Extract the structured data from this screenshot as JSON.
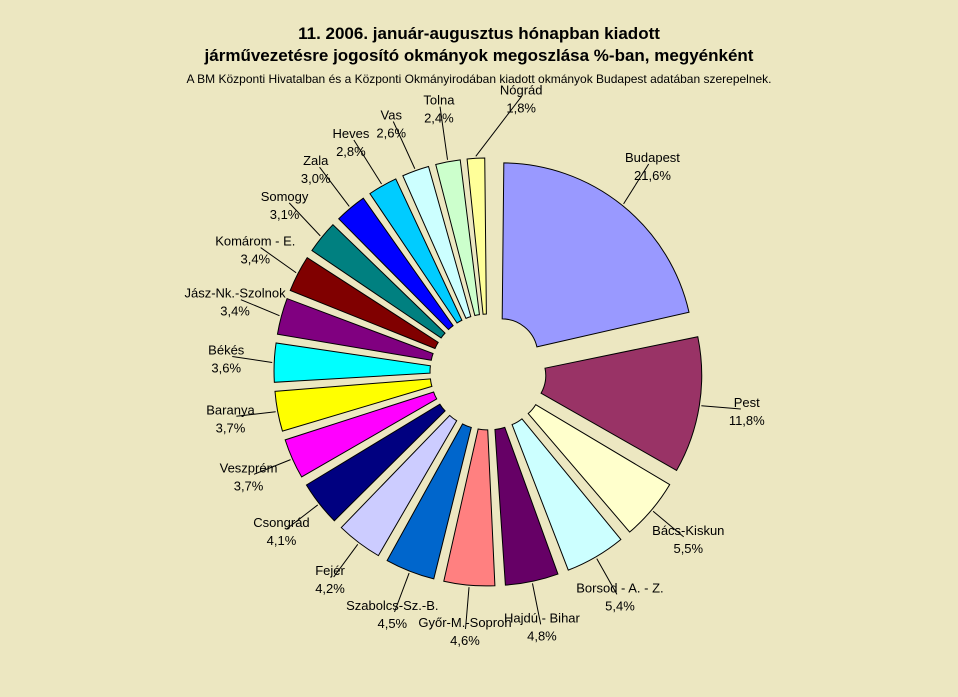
{
  "chart_data": {
    "type": "pie",
    "title_line_1": "11. 2006. január-augusztus hónapban kiadott",
    "title_line_2": "járművezetésre jogosító okmányok megoszlása %-ban, megyénként",
    "subtitle": "A BM Központi Hivatalban és a Központi Okmányirodában kiadott okmányok Budapest adatában szerepelnek.",
    "exploded": true,
    "slices": [
      {
        "name": "Budapest",
        "value": 21.6,
        "label": "21,6%",
        "color": "#9999FF"
      },
      {
        "name": "Pest",
        "value": 11.8,
        "label": "11,8%",
        "color": "#993366"
      },
      {
        "name": "Bács-Kiskun",
        "value": 5.5,
        "label": "5,5%",
        "color": "#FFFFCC"
      },
      {
        "name": "Borsod - A. - Z.",
        "value": 5.4,
        "label": "5,4%",
        "color": "#CCFFFF"
      },
      {
        "name": "Hajdú - Bihar",
        "value": 4.8,
        "label": "4,8%",
        "color": "#660066"
      },
      {
        "name": "Győr-M.-Sopron",
        "value": 4.6,
        "label": "4,6%",
        "color": "#FF8080"
      },
      {
        "name": "Szabolcs-Sz.-B.",
        "value": 4.5,
        "label": "4,5%",
        "color": "#0066CC"
      },
      {
        "name": "Fejér",
        "value": 4.2,
        "label": "4,2%",
        "color": "#CCCCFF"
      },
      {
        "name": "Csongrád",
        "value": 4.1,
        "label": "4,1%",
        "color": "#000080"
      },
      {
        "name": "Veszprém",
        "value": 3.7,
        "label": "3,7%",
        "color": "#FF00FF"
      },
      {
        "name": "Baranya",
        "value": 3.7,
        "label": "3,7%",
        "color": "#FFFF00"
      },
      {
        "name": "Békés",
        "value": 3.6,
        "label": "3,6%",
        "color": "#00FFFF"
      },
      {
        "name": "Jász-Nk.-Szolnok",
        "value": 3.4,
        "label": "3,4%",
        "color": "#800080"
      },
      {
        "name": "Komárom - E.",
        "value": 3.4,
        "label": "3,4%",
        "color": "#800000"
      },
      {
        "name": "Somogy",
        "value": 3.1,
        "label": "3,1%",
        "color": "#008080"
      },
      {
        "name": "Zala",
        "value": 3.0,
        "label": "3,0%",
        "color": "#0000FF"
      },
      {
        "name": "Heves",
        "value": 2.8,
        "label": "2,8%",
        "color": "#00CCFF"
      },
      {
        "name": "Vas",
        "value": 2.6,
        "label": "2,6%",
        "color": "#CCFFFF"
      },
      {
        "name": "Tolna",
        "value": 2.4,
        "label": "2,4%",
        "color": "#CCFFCC"
      },
      {
        "name": "Nógrád",
        "value": 1.8,
        "label": "1,8%",
        "color": "#FFFF99"
      }
    ]
  }
}
